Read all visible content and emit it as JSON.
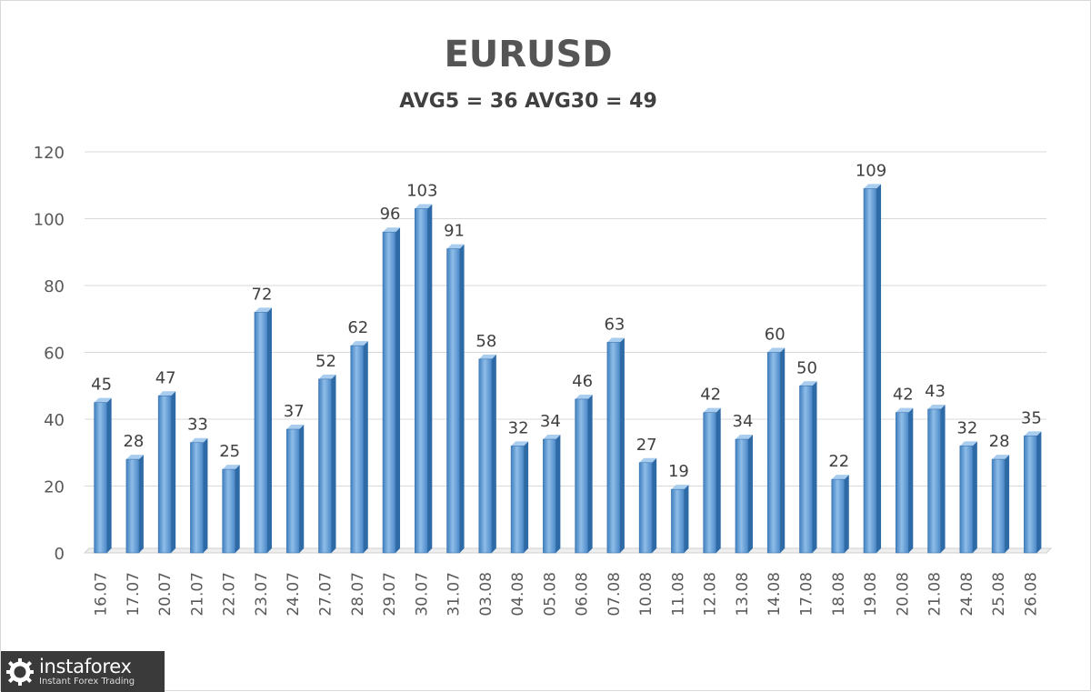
{
  "chart_data": {
    "type": "bar",
    "title": "EURUSD",
    "subtitle": "AVG5 = 36 AVG30 = 49",
    "categories": [
      "16.07",
      "17.07",
      "20.07",
      "21.07",
      "22.07",
      "23.07",
      "24.07",
      "27.07",
      "28.07",
      "29.07",
      "30.07",
      "31.07",
      "03.08",
      "04.08",
      "05.08",
      "06.08",
      "07.08",
      "10.08",
      "11.08",
      "12.08",
      "13.08",
      "14.08",
      "17.08",
      "18.08",
      "19.08",
      "20.08",
      "21.08",
      "24.08",
      "25.08",
      "26.08"
    ],
    "values": [
      45,
      28,
      47,
      33,
      25,
      72,
      37,
      52,
      62,
      96,
      103,
      91,
      58,
      32,
      34,
      46,
      63,
      27,
      19,
      42,
      34,
      60,
      50,
      22,
      109,
      42,
      43,
      32,
      28,
      35
    ],
    "ylim": [
      0,
      120
    ],
    "yticks": [
      0,
      20,
      40,
      60,
      80,
      100,
      120
    ],
    "grid": true,
    "legend": "none",
    "bar_color": "#5b9bd5",
    "data_labels": true
  },
  "watermark": {
    "name": "instaforex",
    "tagline": "Instant Forex Trading",
    "icon": "gear-logo-icon"
  }
}
